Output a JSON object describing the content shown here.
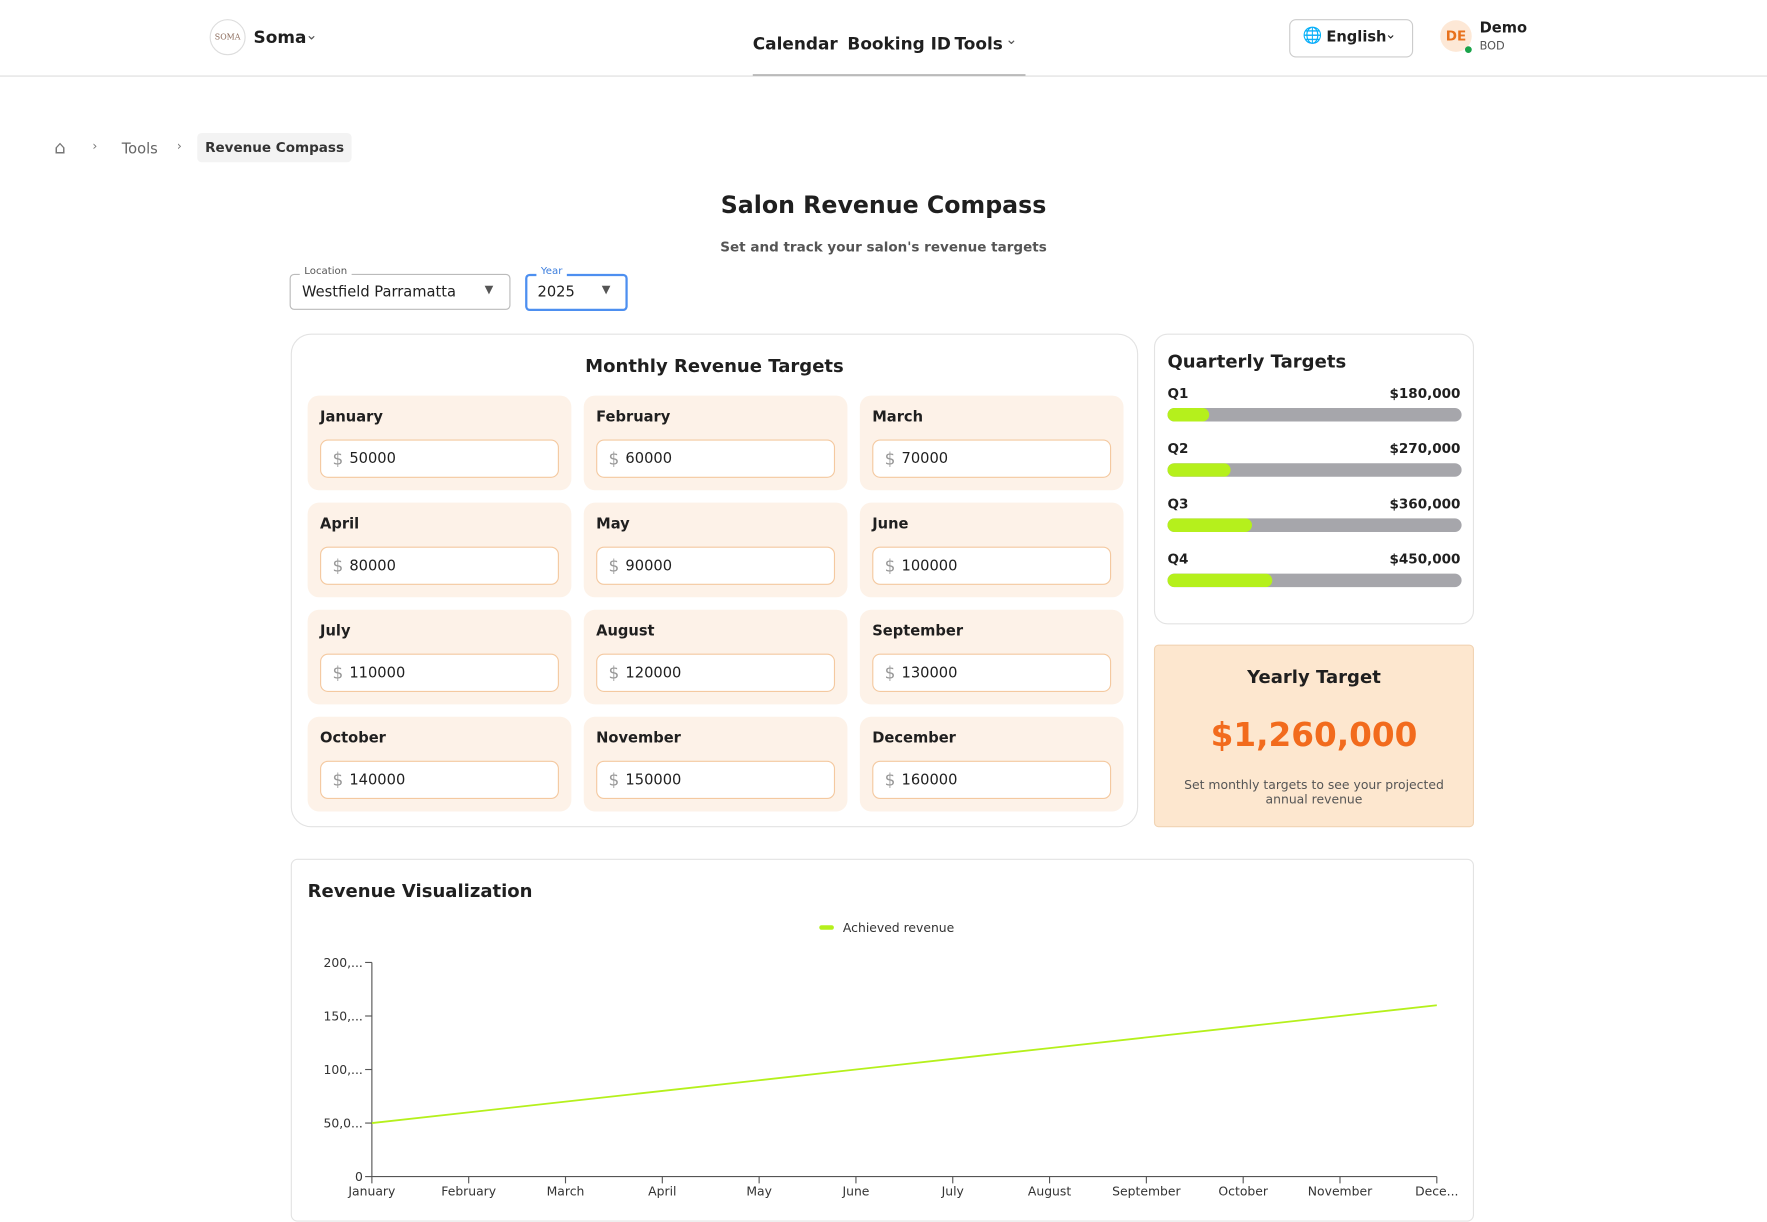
{
  "header": {
    "logo": "SOMA",
    "brand": "Soma",
    "nav": [
      "Calendar",
      "Booking ID",
      "Tools"
    ],
    "language": "English",
    "user": {
      "initials": "DE",
      "name": "Demo",
      "role": "BOD"
    }
  },
  "breadcrumb": [
    "Tools",
    "Revenue Compass"
  ],
  "page": {
    "title": "Salon Revenue Compass",
    "subtitle": "Set and track your salon's revenue targets"
  },
  "filters": [
    {
      "label": "Location",
      "value": "Westfield Parramatta"
    },
    {
      "label": "Year",
      "value": "2025"
    }
  ],
  "monthly": {
    "title": "Monthly Revenue Targets",
    "currency": "$",
    "months": [
      {
        "name": "January",
        "value": 50000
      },
      {
        "name": "February",
        "value": 60000
      },
      {
        "name": "March",
        "value": 70000
      },
      {
        "name": "April",
        "value": 80000
      },
      {
        "name": "May",
        "value": 90000
      },
      {
        "name": "June",
        "value": 100000
      },
      {
        "name": "July",
        "value": 110000
      },
      {
        "name": "August",
        "value": 120000
      },
      {
        "name": "September",
        "value": 130000
      },
      {
        "name": "October",
        "value": 140000
      },
      {
        "name": "November",
        "value": 150000
      },
      {
        "name": "December",
        "value": 160000
      }
    ]
  },
  "quarterly": {
    "title": "Quarterly Targets",
    "quarters": [
      {
        "name": "Q1",
        "target": "$180,000",
        "progress": 14.3
      },
      {
        "name": "Q2",
        "target": "$270,000",
        "progress": 21.4
      },
      {
        "name": "Q3",
        "target": "$360,000",
        "progress": 28.6
      },
      {
        "name": "Q4",
        "target": "$450,000",
        "progress": 35.7
      }
    ]
  },
  "yearly": {
    "title": "Yearly Target",
    "value": "$1,260,000",
    "note": "Set monthly targets to see your projected annual revenue"
  },
  "chart_data": {
    "type": "line",
    "title": "Revenue Visualization",
    "categories": [
      "January",
      "February",
      "March",
      "April",
      "May",
      "June",
      "July",
      "August",
      "September",
      "October",
      "November",
      "Dece..."
    ],
    "series": [
      {
        "name": "Achieved revenue",
        "color": "#b5f01c",
        "values": [
          50000,
          60000,
          70000,
          80000,
          90000,
          100000,
          110000,
          120000,
          130000,
          140000,
          150000,
          160000
        ]
      }
    ],
    "ylim": [
      0,
      200000
    ],
    "yticks": [
      0,
      {
        "value": 50000,
        "label": "50,0..."
      },
      {
        "value": 100000,
        "label": "100,..."
      },
      {
        "value": 150000,
        "label": "150,..."
      },
      {
        "value": 200000,
        "label": "200,..."
      }
    ]
  }
}
